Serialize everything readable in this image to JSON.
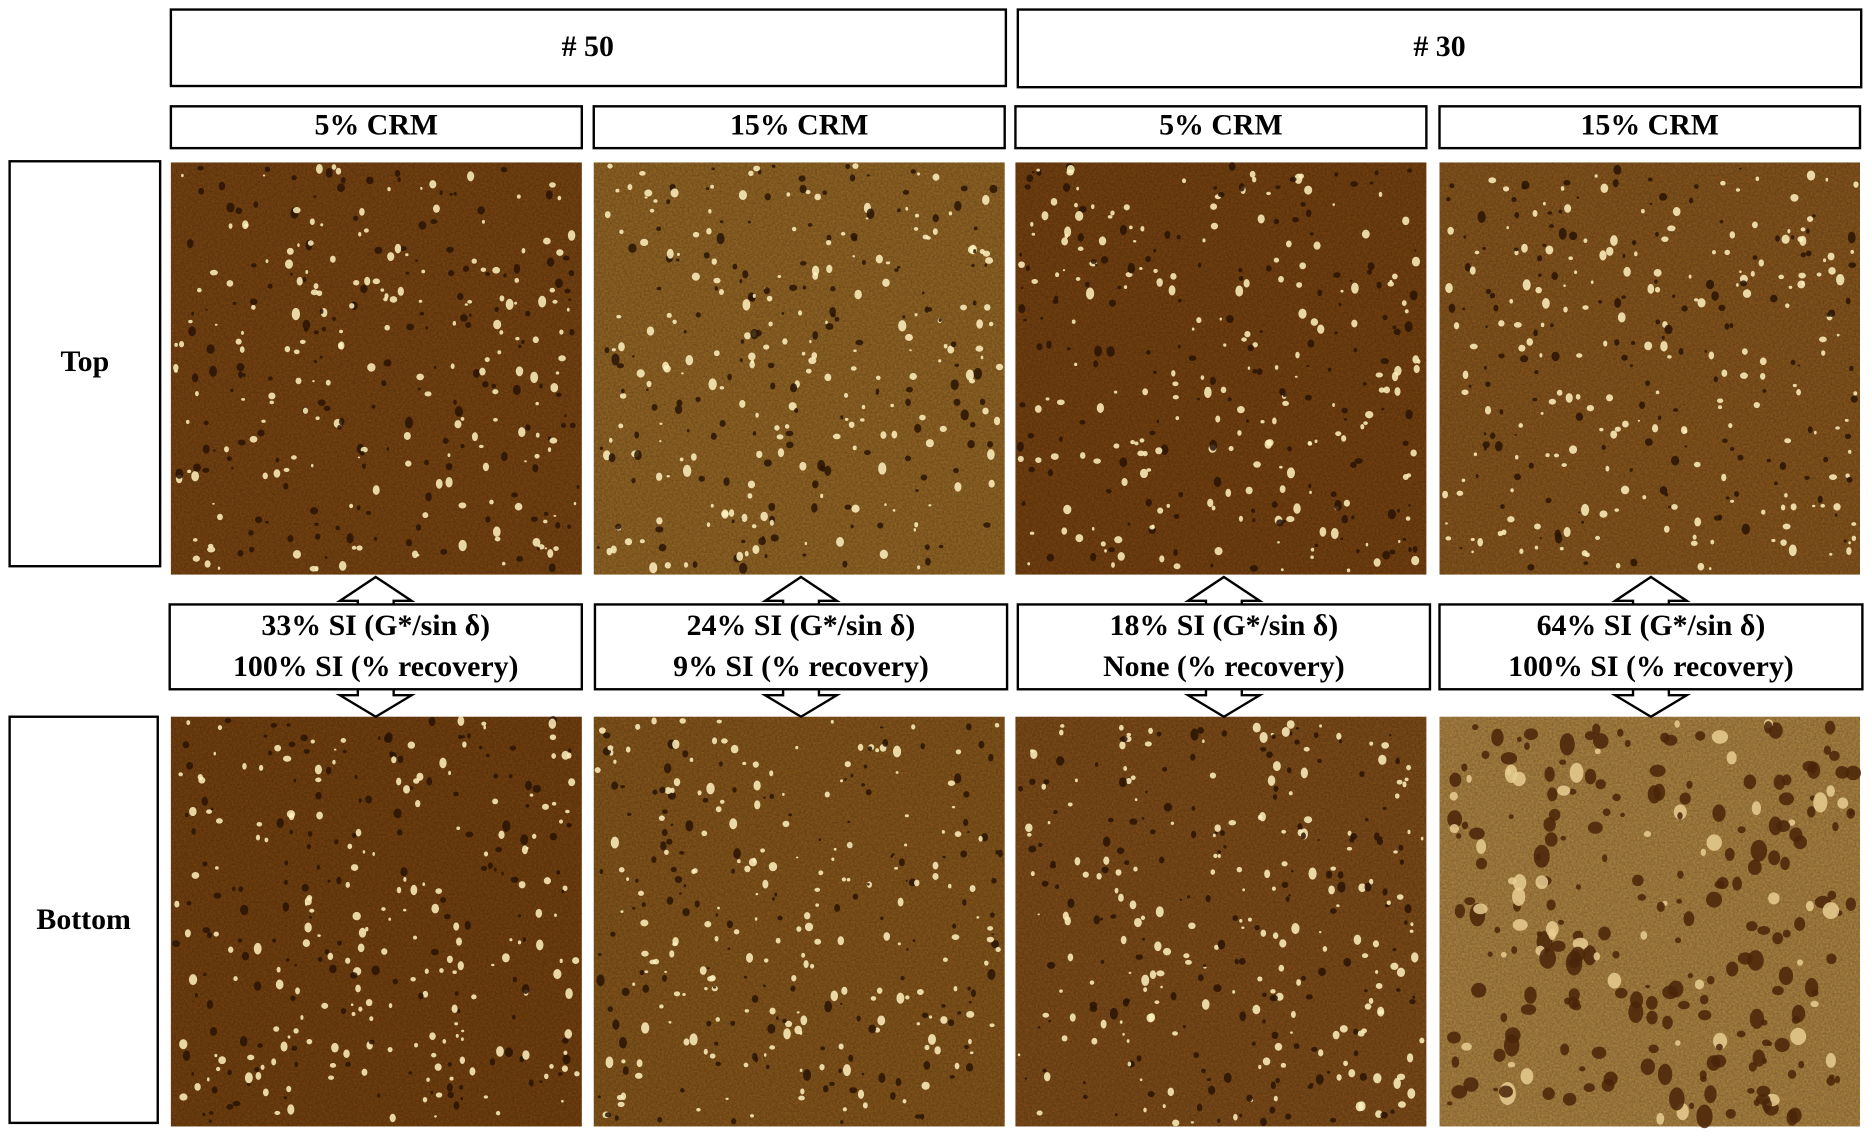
{
  "groups": [
    {
      "label": "# 50",
      "columns": [
        "5% CRM",
        "15% CRM"
      ]
    },
    {
      "label": "# 30",
      "columns": [
        "5% CRM",
        "15% CRM"
      ]
    }
  ],
  "rows": [
    "Top",
    "Bottom"
  ],
  "comparisons": [
    {
      "line1": "33% SI (G*/sin δ)",
      "line2": "100% SI (% recovery)"
    },
    {
      "line1": "24% SI (G*/sin δ)",
      "line2": "9% SI (% recovery)"
    },
    {
      "line1": "18% SI (G*/sin δ)",
      "line2": "None (% recovery)"
    },
    {
      "line1": "64% SI (G*/sin δ)",
      "line2": "100% SI (% recovery)"
    }
  ]
}
